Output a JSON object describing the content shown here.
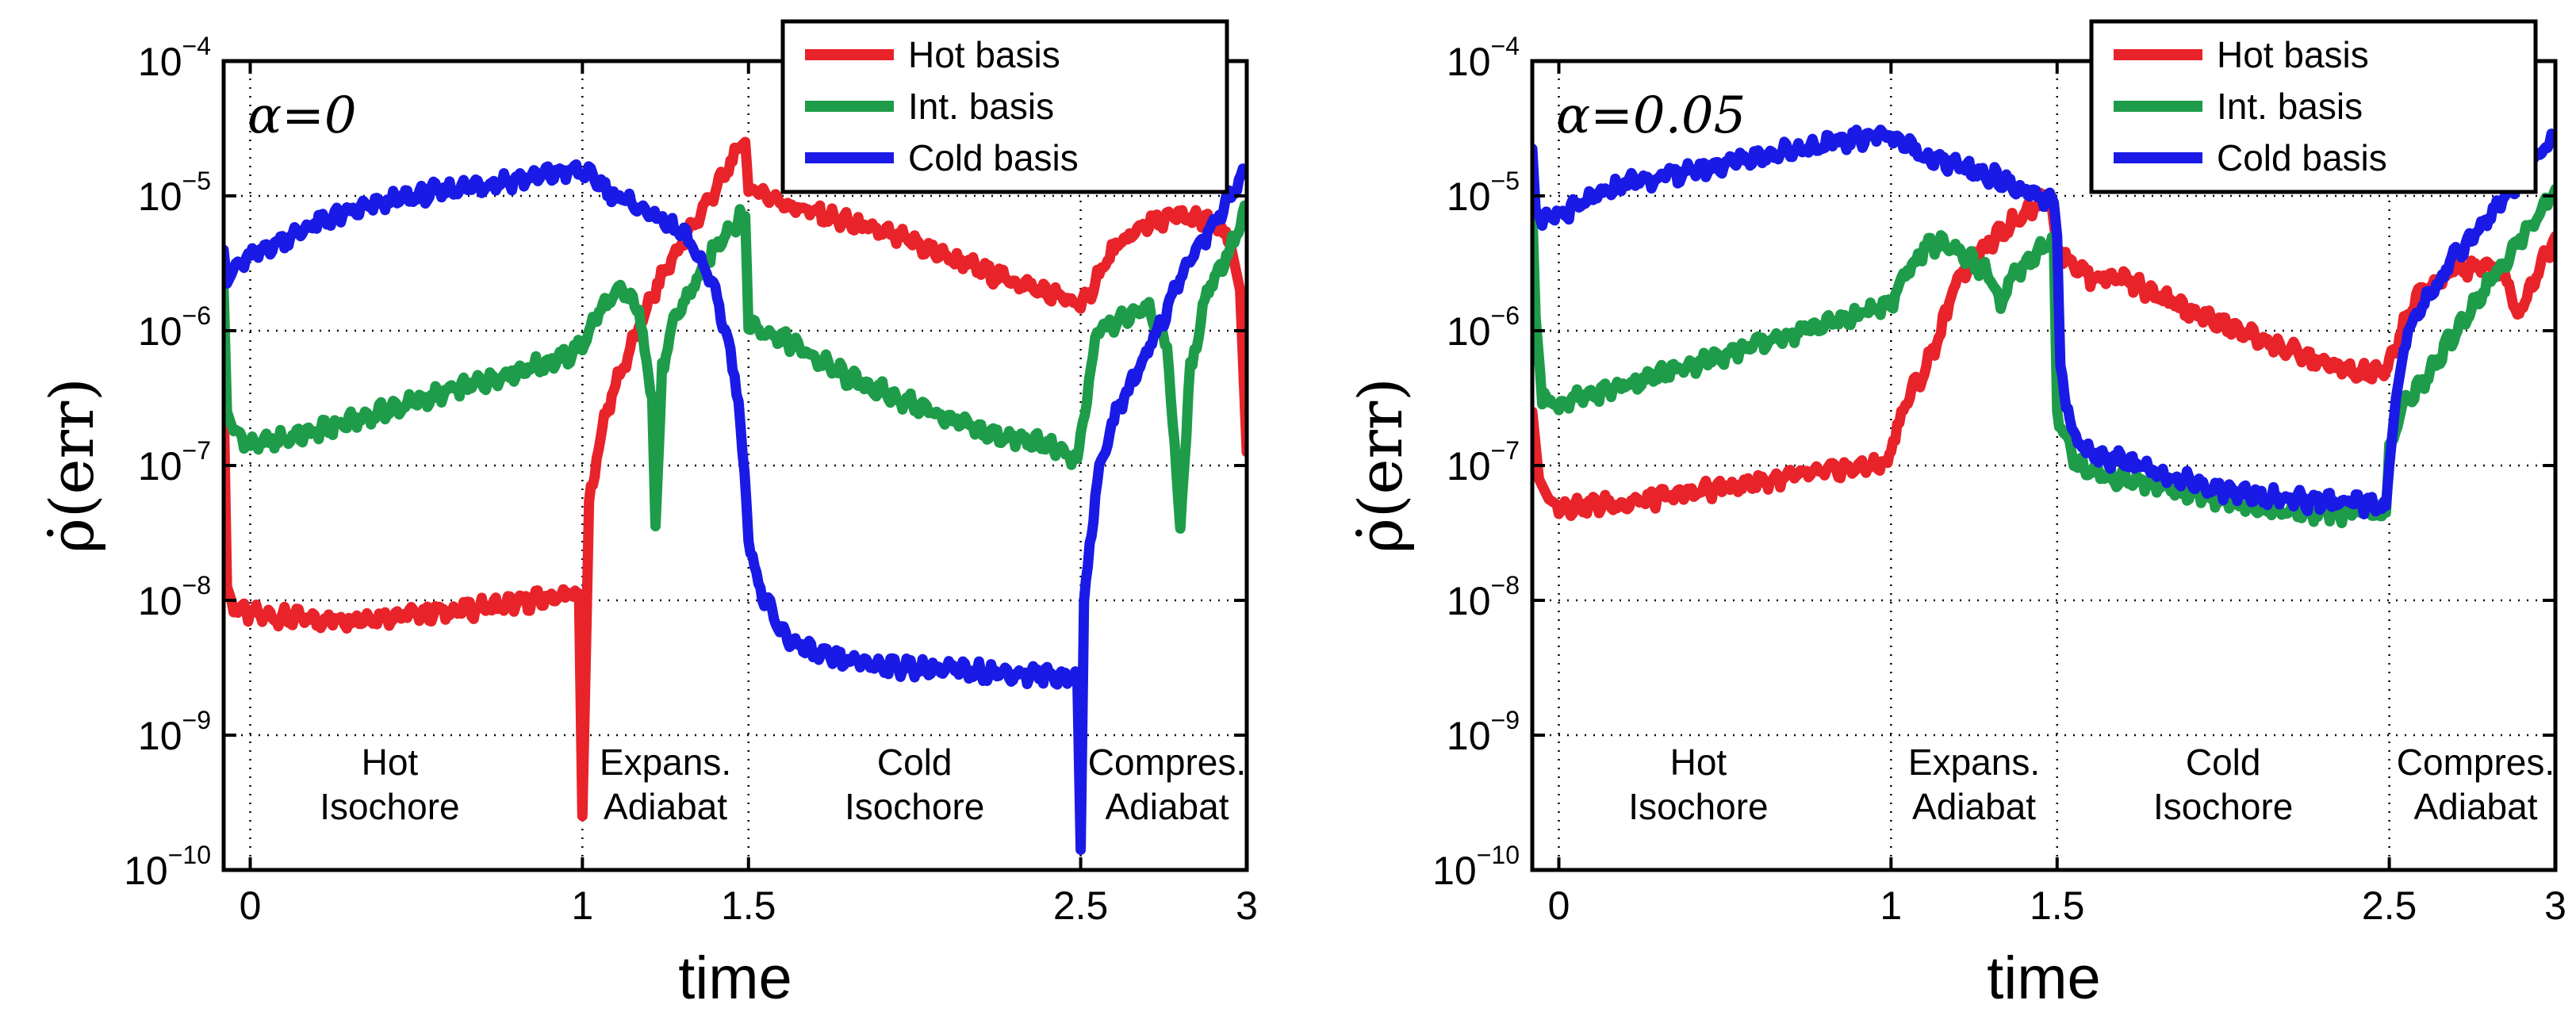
{
  "chart_data": [
    {
      "type": "line",
      "annotation": "α=0",
      "xlabel": "time",
      "ylabel": "ρ̇(err)",
      "xlim": [
        -0.08,
        3.0
      ],
      "ylim_log10": [
        -10,
        -4
      ],
      "x_ticks": [
        "0",
        "1",
        "1.5",
        "2.5",
        "3"
      ],
      "x_tick_values": [
        0,
        1,
        1.5,
        2.5,
        3
      ],
      "y_ticks": [
        {
          "base": "10",
          "exp": "−4"
        },
        {
          "base": "10",
          "exp": "−5"
        },
        {
          "base": "10",
          "exp": "−6"
        },
        {
          "base": "10",
          "exp": "−7"
        },
        {
          "base": "10",
          "exp": "−8"
        },
        {
          "base": "10",
          "exp": "−9"
        },
        {
          "base": "10",
          "exp": "−10"
        }
      ],
      "y_tick_values": [
        -4,
        -5,
        -6,
        -7,
        -8,
        -9,
        -10
      ],
      "grid": "dotted",
      "legend": [
        "Hot basis",
        "Int. basis",
        "Cold basis"
      ],
      "legend_position": "top-right",
      "phases": [
        {
          "line1": "Hot",
          "line2": "Isochore",
          "x": 0.42
        },
        {
          "line1": "Expans.",
          "line2": "Adiabat",
          "x": 1.25
        },
        {
          "line1": "Cold",
          "line2": "Isochore",
          "x": 2.0
        },
        {
          "line1": "Compres.",
          "line2": "Adiabat",
          "x": 2.76
        }
      ],
      "series": [
        {
          "name": "Hot basis",
          "color": "#e8232a",
          "x_log10_y": [
            [
              -0.08,
              -6.5
            ],
            [
              -0.07,
              -7.9
            ],
            [
              -0.05,
              -8.05
            ],
            [
              0,
              -8.1
            ],
            [
              0.2,
              -8.15
            ],
            [
              0.4,
              -8.12
            ],
            [
              0.6,
              -8.08
            ],
            [
              0.8,
              -8.02
            ],
            [
              0.99,
              -7.95
            ],
            [
              1.0,
              -9.6
            ],
            [
              1.02,
              -7.3
            ],
            [
              1.06,
              -6.7
            ],
            [
              1.1,
              -6.4
            ],
            [
              1.15,
              -6.1
            ],
            [
              1.2,
              -5.8
            ],
            [
              1.25,
              -5.55
            ],
            [
              1.3,
              -5.35
            ],
            [
              1.35,
              -5.15
            ],
            [
              1.4,
              -4.95
            ],
            [
              1.44,
              -4.8
            ],
            [
              1.47,
              -4.65
            ],
            [
              1.49,
              -4.6
            ],
            [
              1.5,
              -4.95
            ],
            [
              1.55,
              -4.98
            ],
            [
              1.6,
              -5.05
            ],
            [
              1.8,
              -5.2
            ],
            [
              2.0,
              -5.35
            ],
            [
              2.2,
              -5.55
            ],
            [
              2.4,
              -5.72
            ],
            [
              2.49,
              -5.8
            ],
            [
              2.5,
              -5.85
            ],
            [
              2.55,
              -5.6
            ],
            [
              2.6,
              -5.4
            ],
            [
              2.7,
              -5.2
            ],
            [
              2.8,
              -5.15
            ],
            [
              2.9,
              -5.2
            ],
            [
              2.95,
              -5.35
            ],
            [
              2.98,
              -5.7
            ],
            [
              3.0,
              -6.9
            ]
          ]
        },
        {
          "name": "Int. basis",
          "color": "#1e9c4a",
          "x_log10_y": [
            [
              -0.08,
              -5.7
            ],
            [
              -0.07,
              -6.6
            ],
            [
              -0.05,
              -6.75
            ],
            [
              0,
              -6.85
            ],
            [
              0.2,
              -6.75
            ],
            [
              0.4,
              -6.6
            ],
            [
              0.6,
              -6.45
            ],
            [
              0.8,
              -6.3
            ],
            [
              0.95,
              -6.2
            ],
            [
              1.0,
              -6.1
            ],
            [
              1.05,
              -5.85
            ],
            [
              1.12,
              -5.7
            ],
            [
              1.17,
              -5.85
            ],
            [
              1.21,
              -6.5
            ],
            [
              1.22,
              -7.45
            ],
            [
              1.24,
              -6.3
            ],
            [
              1.28,
              -5.9
            ],
            [
              1.35,
              -5.6
            ],
            [
              1.42,
              -5.3
            ],
            [
              1.48,
              -5.15
            ],
            [
              1.49,
              -5.15
            ],
            [
              1.5,
              -5.95
            ],
            [
              1.55,
              -6.0
            ],
            [
              1.6,
              -6.05
            ],
            [
              1.8,
              -6.35
            ],
            [
              2.0,
              -6.55
            ],
            [
              2.2,
              -6.75
            ],
            [
              2.4,
              -6.85
            ],
            [
              2.49,
              -6.95
            ],
            [
              2.5,
              -6.8
            ],
            [
              2.55,
              -6.0
            ],
            [
              2.6,
              -5.95
            ],
            [
              2.7,
              -5.8
            ],
            [
              2.76,
              -6.1
            ],
            [
              2.8,
              -7.45
            ],
            [
              2.83,
              -6.3
            ],
            [
              2.88,
              -5.7
            ],
            [
              2.95,
              -5.4
            ],
            [
              3.0,
              -5.1
            ]
          ]
        },
        {
          "name": "Cold basis",
          "color": "#1a1ae6",
          "x_log10_y": [
            [
              -0.08,
              -5.4
            ],
            [
              -0.07,
              -5.65
            ],
            [
              -0.05,
              -5.55
            ],
            [
              0,
              -5.45
            ],
            [
              0.2,
              -5.2
            ],
            [
              0.4,
              -5.05
            ],
            [
              0.6,
              -4.95
            ],
            [
              0.8,
              -4.88
            ],
            [
              0.95,
              -4.82
            ],
            [
              1.0,
              -4.82
            ],
            [
              1.05,
              -4.9
            ],
            [
              1.1,
              -5.0
            ],
            [
              1.2,
              -5.12
            ],
            [
              1.3,
              -5.28
            ],
            [
              1.35,
              -5.45
            ],
            [
              1.4,
              -5.7
            ],
            [
              1.44,
              -6.1
            ],
            [
              1.47,
              -6.5
            ],
            [
              1.5,
              -7.5
            ],
            [
              1.53,
              -7.9
            ],
            [
              1.6,
              -8.25
            ],
            [
              1.7,
              -8.4
            ],
            [
              1.8,
              -8.45
            ],
            [
              2.0,
              -8.5
            ],
            [
              2.2,
              -8.53
            ],
            [
              2.49,
              -8.57
            ],
            [
              2.5,
              -9.85
            ],
            [
              2.51,
              -8.0
            ],
            [
              2.55,
              -7.1
            ],
            [
              2.6,
              -6.65
            ],
            [
              2.65,
              -6.4
            ],
            [
              2.75,
              -5.9
            ],
            [
              2.8,
              -5.6
            ],
            [
              2.9,
              -5.2
            ],
            [
              3.0,
              -4.82
            ]
          ]
        }
      ]
    },
    {
      "type": "line",
      "annotation": "α=0.05",
      "xlabel": "time",
      "ylabel": "ρ̇(err)",
      "xlim": [
        -0.08,
        3.0
      ],
      "ylim_log10": [
        -10,
        -4
      ],
      "x_ticks": [
        "0",
        "1",
        "1.5",
        "2.5",
        "3"
      ],
      "x_tick_values": [
        0,
        1,
        1.5,
        2.5,
        3
      ],
      "y_ticks": [
        {
          "base": "10",
          "exp": "−4"
        },
        {
          "base": "10",
          "exp": "−5"
        },
        {
          "base": "10",
          "exp": "−6"
        },
        {
          "base": "10",
          "exp": "−7"
        },
        {
          "base": "10",
          "exp": "−8"
        },
        {
          "base": "10",
          "exp": "−9"
        },
        {
          "base": "10",
          "exp": "−10"
        }
      ],
      "y_tick_values": [
        -4,
        -5,
        -6,
        -7,
        -8,
        -9,
        -10
      ],
      "grid": "dotted",
      "legend": [
        "Hot basis",
        "Int. basis",
        "Cold basis"
      ],
      "legend_position": "top-right",
      "phases": [
        {
          "line1": "Hot",
          "line2": "Isochore",
          "x": 0.42
        },
        {
          "line1": "Expans.",
          "line2": "Adiabat",
          "x": 1.25
        },
        {
          "line1": "Cold",
          "line2": "Isochore",
          "x": 2.0
        },
        {
          "line1": "Compres.",
          "line2": "Adiabat",
          "x": 2.76
        }
      ],
      "series": [
        {
          "name": "Hot basis",
          "color": "#e8232a",
          "x_log10_y": [
            [
              -0.08,
              -6.6
            ],
            [
              -0.06,
              -7.1
            ],
            [
              -0.03,
              -7.25
            ],
            [
              0,
              -7.3
            ],
            [
              0.2,
              -7.28
            ],
            [
              0.4,
              -7.2
            ],
            [
              0.6,
              -7.12
            ],
            [
              0.8,
              -7.05
            ],
            [
              0.99,
              -6.98
            ],
            [
              1.0,
              -6.85
            ],
            [
              1.05,
              -6.5
            ],
            [
              1.1,
              -6.3
            ],
            [
              1.15,
              -6.0
            ],
            [
              1.2,
              -5.6
            ],
            [
              1.3,
              -5.35
            ],
            [
              1.4,
              -5.12
            ],
            [
              1.48,
              -5.0
            ],
            [
              1.5,
              -5.4
            ],
            [
              1.55,
              -5.5
            ],
            [
              1.6,
              -5.6
            ],
            [
              1.7,
              -5.6
            ],
            [
              1.8,
              -5.75
            ],
            [
              2.0,
              -5.95
            ],
            [
              2.2,
              -6.15
            ],
            [
              2.4,
              -6.32
            ],
            [
              2.49,
              -6.3
            ],
            [
              2.5,
              -6.25
            ],
            [
              2.55,
              -5.9
            ],
            [
              2.6,
              -5.7
            ],
            [
              2.7,
              -5.55
            ],
            [
              2.8,
              -5.5
            ],
            [
              2.86,
              -5.65
            ],
            [
              2.88,
              -5.9
            ],
            [
              2.92,
              -5.7
            ],
            [
              2.96,
              -5.5
            ],
            [
              3.0,
              -5.3
            ]
          ]
        },
        {
          "name": "Int. basis",
          "color": "#1e9c4a",
          "x_log10_y": [
            [
              -0.08,
              -5.1
            ],
            [
              -0.07,
              -5.9
            ],
            [
              -0.05,
              -6.5
            ],
            [
              0,
              -6.55
            ],
            [
              0.2,
              -6.4
            ],
            [
              0.4,
              -6.25
            ],
            [
              0.6,
              -6.1
            ],
            [
              0.8,
              -5.95
            ],
            [
              0.95,
              -5.85
            ],
            [
              1.0,
              -5.8
            ],
            [
              1.05,
              -5.55
            ],
            [
              1.1,
              -5.4
            ],
            [
              1.15,
              -5.35
            ],
            [
              1.2,
              -5.4
            ],
            [
              1.3,
              -5.6
            ],
            [
              1.33,
              -5.85
            ],
            [
              1.36,
              -5.6
            ],
            [
              1.45,
              -5.4
            ],
            [
              1.49,
              -5.35
            ],
            [
              1.5,
              -6.6
            ],
            [
              1.55,
              -6.95
            ],
            [
              1.6,
              -7.05
            ],
            [
              1.8,
              -7.15
            ],
            [
              2.0,
              -7.25
            ],
            [
              2.2,
              -7.35
            ],
            [
              2.49,
              -7.35
            ],
            [
              2.5,
              -6.9
            ],
            [
              2.55,
              -6.5
            ],
            [
              2.6,
              -6.4
            ],
            [
              2.7,
              -6.0
            ],
            [
              2.8,
              -5.65
            ],
            [
              2.9,
              -5.3
            ],
            [
              3.0,
              -4.95
            ]
          ]
        },
        {
          "name": "Cold basis",
          "color": "#1a1ae6",
          "x_log10_y": [
            [
              -0.08,
              -4.65
            ],
            [
              -0.07,
              -5.1
            ],
            [
              -0.05,
              -5.2
            ],
            [
              0,
              -5.15
            ],
            [
              0.2,
              -4.9
            ],
            [
              0.4,
              -4.82
            ],
            [
              0.6,
              -4.7
            ],
            [
              0.8,
              -4.62
            ],
            [
              0.95,
              -4.55
            ],
            [
              1.0,
              -4.55
            ],
            [
              1.05,
              -4.62
            ],
            [
              1.1,
              -4.7
            ],
            [
              1.2,
              -4.78
            ],
            [
              1.3,
              -4.85
            ],
            [
              1.4,
              -4.97
            ],
            [
              1.49,
              -5.05
            ],
            [
              1.5,
              -5.3
            ],
            [
              1.51,
              -6.3
            ],
            [
              1.55,
              -6.8
            ],
            [
              1.6,
              -6.9
            ],
            [
              1.8,
              -7.05
            ],
            [
              2.0,
              -7.18
            ],
            [
              2.2,
              -7.25
            ],
            [
              2.49,
              -7.3
            ],
            [
              2.5,
              -7.0
            ],
            [
              2.52,
              -6.5
            ],
            [
              2.55,
              -6.05
            ],
            [
              2.6,
              -5.8
            ],
            [
              2.7,
              -5.45
            ],
            [
              2.8,
              -5.15
            ],
            [
              2.9,
              -4.85
            ],
            [
              3.0,
              -4.55
            ]
          ]
        }
      ]
    }
  ]
}
